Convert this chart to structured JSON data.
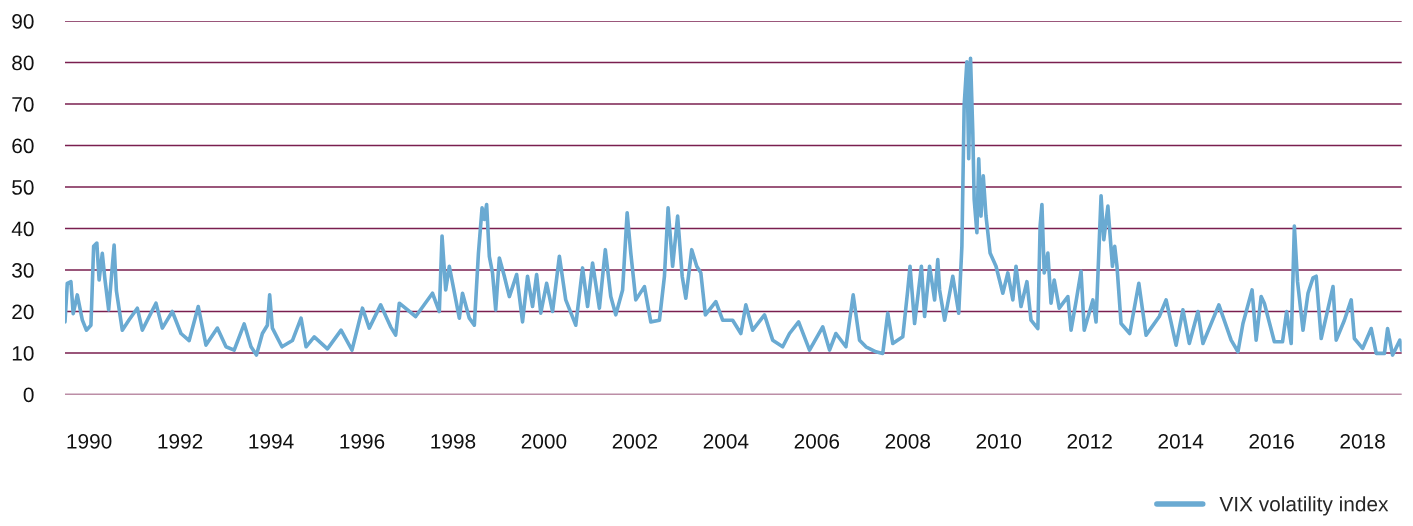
{
  "chart_data": {
    "type": "line",
    "xlim": [
      1989.47,
      2018.86
    ],
    "xticks": [
      1990,
      1992,
      1994,
      1996,
      1998,
      2000,
      2002,
      2004,
      2006,
      2008,
      2010,
      2012,
      2014,
      2016,
      2018
    ],
    "ylim": [
      0,
      90
    ],
    "yticks": [
      0,
      10,
      20,
      30,
      40,
      50,
      60,
      70,
      80,
      90
    ],
    "grid": "y",
    "legend": "bottom right",
    "marker": "none",
    "line_style": "solid",
    "series": [
      {
        "name": "VIX volatility index",
        "color": "#6aaad2",
        "x": [
          1989.47,
          1989.52,
          1989.6,
          1989.65,
          1989.74,
          1989.85,
          1989.94,
          1990.04,
          1990.1,
          1990.17,
          1990.22,
          1990.29,
          1990.35,
          1990.43,
          1990.55,
          1990.6,
          1990.73,
          1990.88,
          1991.06,
          1991.17,
          1991.47,
          1991.61,
          1991.83,
          1992.02,
          1992.2,
          1992.4,
          1992.57,
          1992.82,
          1993.01,
          1993.19,
          1993.41,
          1993.56,
          1993.68,
          1993.81,
          1993.92,
          1993.97,
          1994.03,
          1994.24,
          1994.47,
          1994.66,
          1994.77,
          1994.95,
          1995.24,
          1995.54,
          1995.78,
          1996.01,
          1996.16,
          1996.41,
          1996.63,
          1996.74,
          1996.82,
          1997.18,
          1997.55,
          1997.7,
          1997.76,
          1997.84,
          1997.92,
          1998.14,
          1998.21,
          1998.36,
          1998.47,
          1998.56,
          1998.64,
          1998.69,
          1998.74,
          1998.8,
          1998.87,
          1998.94,
          1999.02,
          1999.13,
          1999.24,
          1999.4,
          1999.53,
          1999.64,
          1999.75,
          1999.84,
          1999.93,
          2000.06,
          2000.19,
          2000.34,
          2000.48,
          2000.7,
          2000.85,
          2000.96,
          2001.07,
          2001.22,
          2001.35,
          2001.47,
          2001.58,
          2001.73,
          2001.83,
          2001.91,
          2002.02,
          2002.21,
          2002.35,
          2002.54,
          2002.65,
          2002.73,
          2002.83,
          2002.94,
          2003.04,
          2003.12,
          2003.25,
          2003.36,
          2003.45,
          2003.55,
          2003.78,
          2003.93,
          2004.15,
          2004.33,
          2004.44,
          2004.59,
          2004.85,
          2005.03,
          2005.25,
          2005.4,
          2005.6,
          2005.84,
          2006.13,
          2006.28,
          2006.42,
          2006.64,
          2006.8,
          2006.94,
          2007.08,
          2007.3,
          2007.45,
          2007.56,
          2007.67,
          2007.89,
          2008.0,
          2008.05,
          2008.15,
          2008.3,
          2008.37,
          2008.48,
          2008.59,
          2008.66,
          2008.7,
          2008.81,
          2008.99,
          2009.12,
          2009.19,
          2009.24,
          2009.3,
          2009.34,
          2009.38,
          2009.43,
          2009.46,
          2009.52,
          2009.56,
          2009.61,
          2009.66,
          2009.72,
          2009.81,
          2009.94,
          2010.09,
          2010.2,
          2010.31,
          2010.38,
          2010.49,
          2010.62,
          2010.71,
          2010.86,
          2010.91,
          2010.95,
          2011.0,
          2011.08,
          2011.15,
          2011.22,
          2011.33,
          2011.52,
          2011.59,
          2011.7,
          2011.81,
          2011.88,
          2012.07,
          2012.14,
          2012.25,
          2012.31,
          2012.4,
          2012.5,
          2012.55,
          2012.6,
          2012.69,
          2012.88,
          2013.08,
          2013.24,
          2013.53,
          2013.68,
          2013.9,
          2014.05,
          2014.19,
          2014.38,
          2014.49,
          2014.84,
          2015.11,
          2015.26,
          2015.37,
          2015.57,
          2015.66,
          2015.77,
          2015.84,
          2016.06,
          2016.24,
          2016.33,
          2016.43,
          2016.5,
          2016.57,
          2016.69,
          2016.8,
          2016.91,
          2016.98,
          2017.09,
          2017.35,
          2017.42,
          2017.6,
          2017.75,
          2017.82,
          2018.0,
          2018.19,
          2018.3,
          2018.48,
          2018.55,
          2018.66,
          2018.82,
          2018.86
        ],
        "values": [
          17.5,
          26.8,
          27.2,
          19.5,
          24,
          18,
          15.5,
          16.7,
          35.7,
          36.5,
          27.6,
          34,
          27.6,
          20.4,
          36,
          25,
          15.5,
          18,
          20.8,
          15.5,
          22,
          16,
          20,
          14.7,
          13,
          21.2,
          11.9,
          16,
          11.5,
          10.7,
          17,
          11.5,
          9.5,
          14.7,
          16.7,
          24,
          16,
          11.5,
          13,
          18.4,
          11.5,
          13.9,
          11,
          15.5,
          10.7,
          20.8,
          16,
          21.6,
          16.3,
          14.3,
          22,
          18.8,
          24.4,
          20,
          38.2,
          25.2,
          30.9,
          18.4,
          24.4,
          18.4,
          16.7,
          34,
          45,
          42.2,
          45.8,
          33.3,
          29.3,
          20.4,
          32.9,
          28.5,
          23.6,
          28.9,
          17.5,
          28.5,
          21.2,
          28.9,
          19.6,
          26.8,
          20,
          33.3,
          22.8,
          16.7,
          30.5,
          21.2,
          31.7,
          20.8,
          34.9,
          23.6,
          19.2,
          25.2,
          43.8,
          34.1,
          22.8,
          26,
          17.5,
          17.9,
          28.5,
          45,
          30.9,
          43,
          28.5,
          23.2,
          34.9,
          30.9,
          29.3,
          19.2,
          22.4,
          17.9,
          17.9,
          14.7,
          21.6,
          15.5,
          19.2,
          13.1,
          11.5,
          14.7,
          17.5,
          10.7,
          16.3,
          10.7,
          14.7,
          11.5,
          24,
          13.1,
          11.5,
          10.3,
          9.9,
          19.6,
          12.3,
          13.9,
          25.2,
          30.9,
          17.1,
          30.9,
          18.8,
          30.9,
          22.8,
          32.5,
          25.2,
          17.9,
          28.5,
          19.6,
          35.7,
          69.7,
          80.2,
          56.8,
          81,
          63.2,
          47,
          39,
          56.8,
          43,
          52.7,
          43,
          34.1,
          30.9,
          24.4,
          29.3,
          22.8,
          30.9,
          21.2,
          27.2,
          17.9,
          15.9,
          40.6,
          45.8,
          29.3,
          34.1,
          22,
          27.6,
          20.8,
          23.6,
          15.5,
          22.4,
          29.7,
          15.5,
          22.8,
          17.5,
          47.9,
          37.3,
          45.4,
          30.9,
          35.7,
          30.9,
          17.1,
          14.7,
          26.8,
          14.3,
          18.8,
          22.8,
          11.9,
          20.4,
          12.3,
          20,
          12.3,
          21.6,
          13.1,
          10.3,
          17.1,
          25.2,
          13.1,
          23.6,
          22,
          12.7,
          12.7,
          20,
          12.3,
          40.6,
          27.2,
          15.5,
          24.4,
          28.1,
          28.5,
          13.5,
          26,
          13.1,
          17.9,
          22.8,
          13.5,
          11.1,
          15.9,
          9.9,
          9.9,
          15.9,
          9.5,
          13.1,
          10.7
        ]
      }
    ]
  }
}
